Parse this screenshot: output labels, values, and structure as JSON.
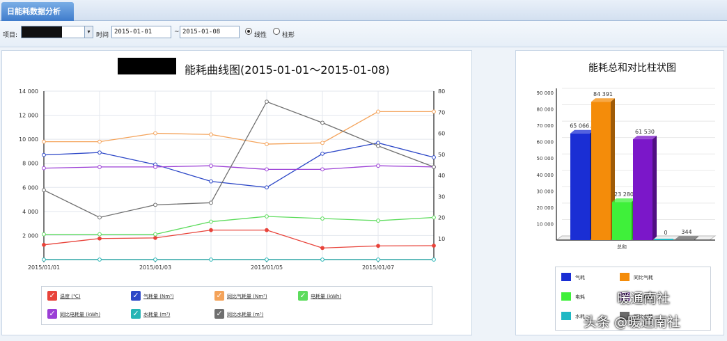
{
  "title_bar": {
    "tab_label": "日能耗数据分析"
  },
  "toolbar": {
    "project_label": "项目:",
    "time_label": "时间",
    "start_date": "2015-01-01",
    "separator": "~",
    "end_date": "2015-01-08",
    "option_line": "线性",
    "option_bar": "柱形"
  },
  "line_chart": {
    "title": "能耗曲线图(2015-01-01～2015-01-08)"
  },
  "bar_chart": {
    "title": "能耗总和对比柱状图"
  },
  "watermark": {
    "line1": "暖通南社",
    "line2": "头条 @暖通南社"
  },
  "chart_data": [
    {
      "type": "line",
      "title": "能耗曲线图(2015-01-01～2015-01-08)",
      "x": [
        "2015/01/01",
        "2015/01/02",
        "2015/01/03",
        "2015/01/04",
        "2015/01/05",
        "2015/01/06",
        "2015/01/07",
        "2015/01/08"
      ],
      "x_tick_labels": [
        "2015/01/01",
        "2015/01/03",
        "2015/01/05",
        "2015/01/07"
      ],
      "y_left_ticks": [
        "2 000",
        "4 000",
        "6 000",
        "8 000",
        "10 000",
        "12 000",
        "14 000"
      ],
      "y_right_ticks": [
        "10",
        "20",
        "30",
        "40",
        "50",
        "60",
        "70",
        "80"
      ],
      "ylim_left": [
        0,
        14000
      ],
      "ylim_right": [
        0,
        80
      ],
      "grid": true,
      "legend_placement": "bottom",
      "series": [
        {
          "name": "温度 (℃)",
          "axis": "right",
          "color": "#e8433a",
          "values": [
            7,
            10,
            10.3,
            14,
            14,
            5.5,
            6.5,
            6.6
          ]
        },
        {
          "name": "气耗量 (Nm³)",
          "axis": "left",
          "color": "#2c47c7",
          "values": [
            8700,
            8900,
            7900,
            6500,
            6000,
            8800,
            9700,
            8500
          ]
        },
        {
          "name": "同比气耗量 (Nm³)",
          "axis": "left",
          "color": "#f4a35a",
          "values": [
            9800,
            9800,
            10500,
            10400,
            9600,
            9700,
            12300,
            12300
          ]
        },
        {
          "name": "电耗量 (kWh)",
          "axis": "right",
          "color": "#5ddc5d",
          "values": [
            12,
            12,
            12,
            18,
            20.5,
            19.5,
            18.5,
            20
          ]
        },
        {
          "name": "同比电耗量 (kWh)",
          "axis": "left",
          "color": "#9b3fd6",
          "values": [
            7600,
            7700,
            7700,
            7800,
            7500,
            7500,
            7800,
            7700
          ]
        },
        {
          "name": "水耗量 (m³)",
          "axis": "right",
          "color": "#25b5b5",
          "values": [
            0,
            0,
            0,
            0,
            0,
            0,
            0,
            0
          ]
        },
        {
          "name": "同比水耗量 (m³)",
          "axis": "right",
          "color": "#6f6f6f",
          "values": [
            33,
            20,
            26,
            27,
            75,
            65,
            54,
            44
          ]
        }
      ]
    },
    {
      "type": "bar",
      "title": "能耗总和对比柱状图",
      "categories": [
        "总和"
      ],
      "y_ticks": [
        "10 000",
        "20 000",
        "30 000",
        "40 000",
        "50 000",
        "60 000",
        "70 000",
        "80 000",
        "90 000"
      ],
      "ylim": [
        0,
        90000
      ],
      "grid": true,
      "legend_placement": "bottom",
      "series": [
        {
          "name": "气耗",
          "color": "#1a2ed4",
          "value": 65066,
          "label": "65 066.6"
        },
        {
          "name": "同比气耗",
          "color": "#f48c0a",
          "value": 84391,
          "label": "84 391"
        },
        {
          "name": "电耗",
          "color": "#3ff03a",
          "value": 23280,
          "label": "23 280"
        },
        {
          "name": "同比电耗",
          "color": "#7b17c9",
          "value": 61530,
          "label": "61 530"
        },
        {
          "name": "水耗",
          "color": "#1fb8c4",
          "value": 0,
          "label": "0"
        },
        {
          "name": "同比水耗",
          "color": "#6a6a6a",
          "value": 344,
          "label": "344"
        }
      ]
    }
  ]
}
